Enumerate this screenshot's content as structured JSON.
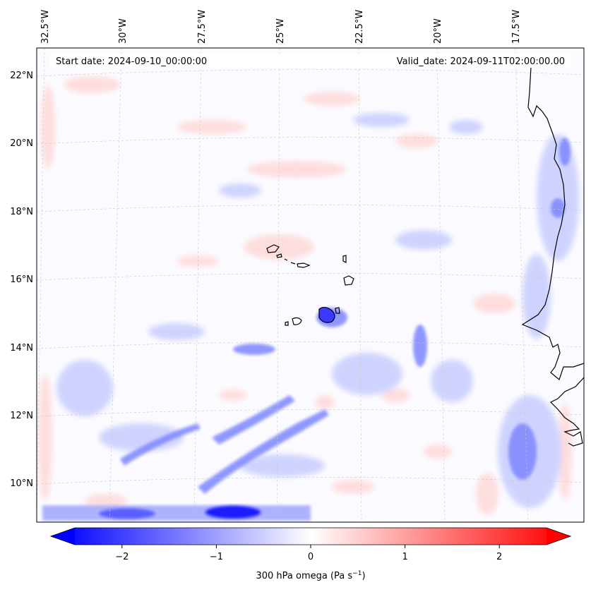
{
  "map": {
    "start_label": "Start date: 2024-09-10_00:00:00",
    "valid_label": "Valid_date: 2024-09-11T02:00:00.00",
    "lon_ticks": [
      "32.5°W",
      "30°W",
      "27.5°W",
      "25°W",
      "22.5°W",
      "20°W",
      "17.5°W"
    ],
    "lat_ticks": [
      "22°N",
      "20°N",
      "18°N",
      "16°N",
      "14°N",
      "12°N",
      "10°N"
    ],
    "field": "300 hPa vertical velocity (omega)"
  },
  "colorbar": {
    "label_main": "300 hPa omega (Pa s",
    "label_sup": "−1",
    "label_end": ")",
    "ticks": [
      "−2",
      "−1",
      "0",
      "1",
      "2"
    ],
    "tick_values": [
      -2,
      -1,
      0,
      1,
      2
    ],
    "range": [
      -2.6,
      2.6
    ],
    "extend": "both",
    "cmap": "bwr",
    "color_low": "#0000ff",
    "color_mid": "#ffffff",
    "color_high": "#ff0000"
  }
}
